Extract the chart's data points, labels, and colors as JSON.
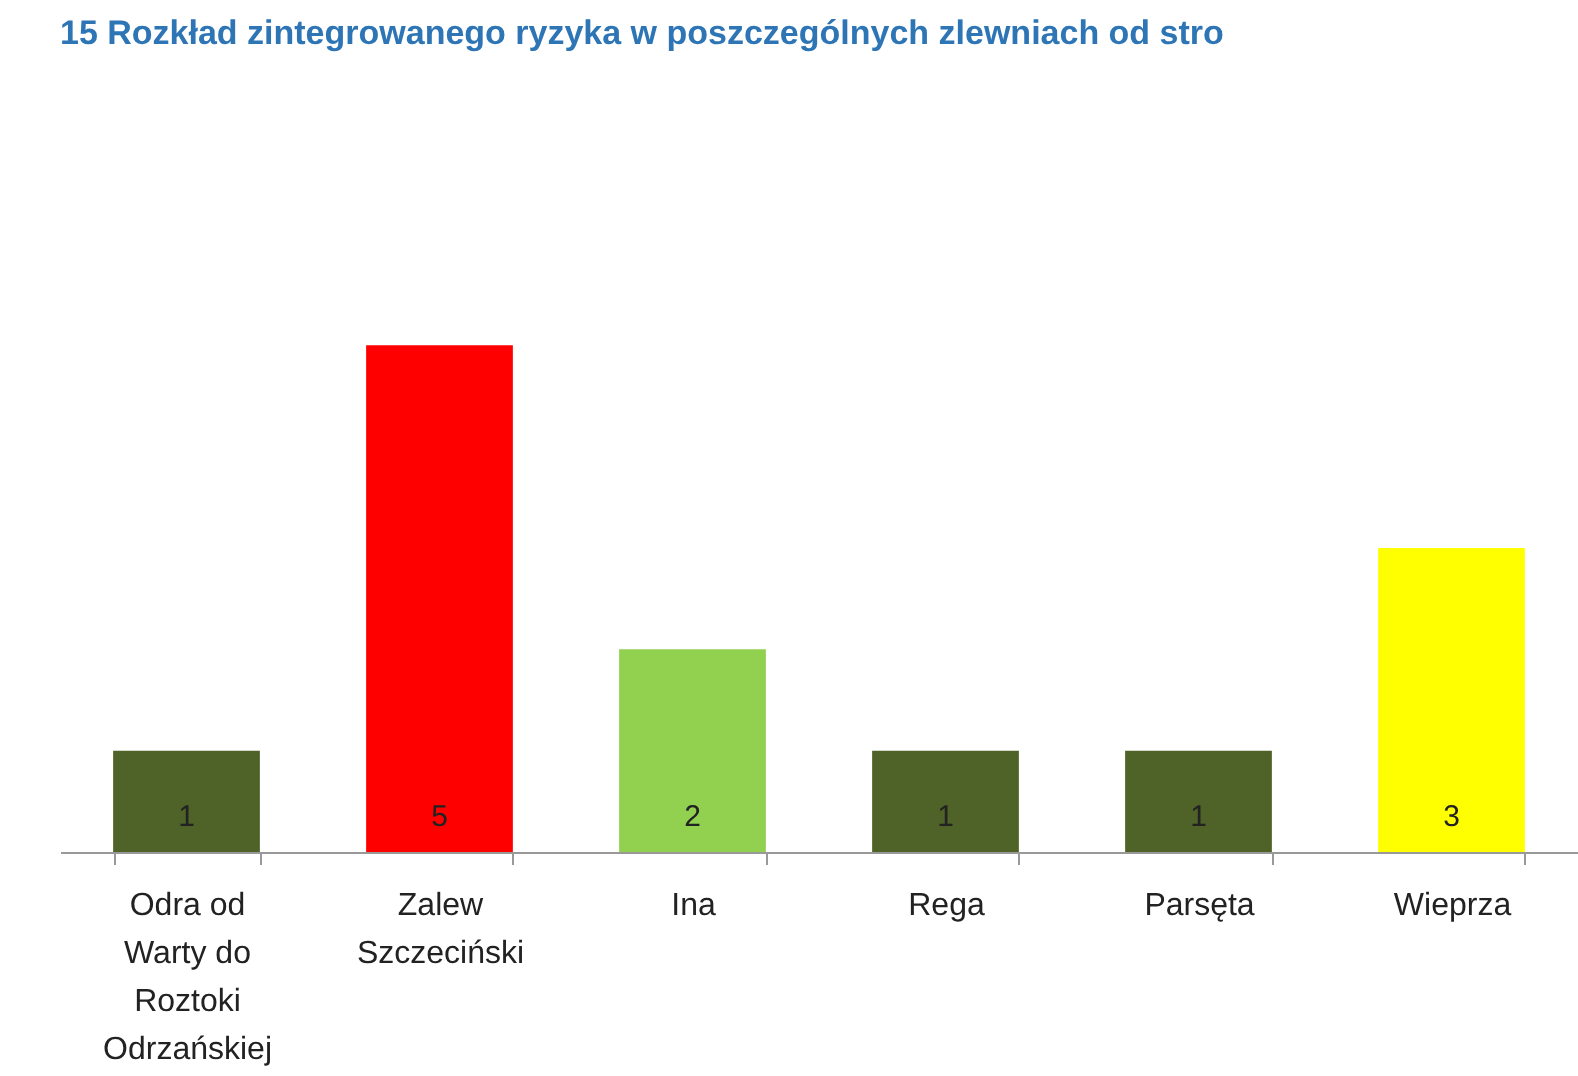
{
  "chart_data": {
    "type": "bar",
    "title": "15 Rozkład zintegrowanego ryzyka w poszczególnych zlewniach od stro",
    "categories": [
      "Odra od Warty do Roztoki Odrzańskiej",
      "Zalew Szczeciński",
      "Ina",
      "Rega",
      "Parsęta",
      "Wieprza"
    ],
    "values": [
      1,
      5,
      2,
      1,
      1,
      3
    ],
    "colors": [
      "#4f6228",
      "#ff0000",
      "#92d050",
      "#4f6228",
      "#4f6228",
      "#ffff00"
    ],
    "data_labels": true
  }
}
